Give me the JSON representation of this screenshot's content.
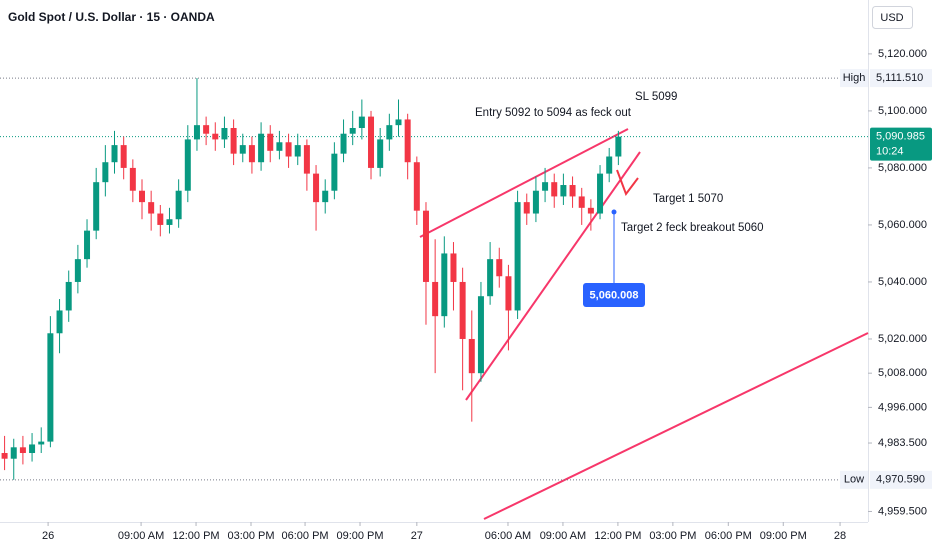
{
  "chart_data": {
    "type": "candlestick",
    "title": "Gold Spot / U.S. Dollar · 15 · OANDA",
    "currency": "USD",
    "x": [
      1,
      3,
      5,
      7,
      9,
      11,
      13,
      15,
      17,
      19,
      21,
      23,
      25,
      27,
      29,
      31,
      33,
      35,
      37,
      39,
      41,
      43,
      45,
      47,
      49,
      51,
      53,
      55,
      57,
      59,
      61,
      63,
      65,
      67,
      69,
      71,
      73,
      75,
      77,
      79,
      81,
      83,
      85,
      87,
      89,
      91,
      93,
      95,
      97,
      99,
      101,
      103,
      105,
      107,
      109,
      111,
      113,
      115,
      117,
      119,
      121,
      123,
      125,
      127,
      129,
      131,
      133,
      135
    ],
    "open": [
      4980,
      4978,
      4982,
      4980,
      4983,
      4984,
      5022,
      5030,
      5040,
      5048,
      5058,
      5075,
      5082,
      5088,
      5080,
      5072,
      5068,
      5064,
      5060,
      5062,
      5072,
      5090,
      5095,
      5092,
      5090,
      5094,
      5085,
      5088,
      5082,
      5092,
      5086,
      5089,
      5084,
      5088,
      5078,
      5068,
      5072,
      5085,
      5092,
      5094,
      5098,
      5080,
      5090,
      5095,
      5097,
      5082,
      5065,
      5040,
      5028,
      5050,
      5040,
      5020,
      5008,
      5035,
      5048,
      5042,
      5030,
      5068,
      5064,
      5072,
      5075,
      5070,
      5074,
      5070,
      5066,
      5064,
      5078,
      5084
    ],
    "high": [
      4986,
      4985,
      4986,
      4987,
      4989,
      5028,
      5034,
      5044,
      5053,
      5062,
      5080,
      5088,
      5093,
      5091,
      5083,
      5076,
      5072,
      5067,
      5066,
      5076,
      5095,
      5111.51,
      5098,
      5096,
      5098,
      5097,
      5092,
      5091,
      5096,
      5095,
      5093,
      5092,
      5092,
      5090,
      5081,
      5076,
      5089,
      5097,
      5100,
      5104,
      5100,
      5094,
      5099,
      5104,
      5099,
      5084,
      5068,
      5055,
      5056,
      5054,
      5045,
      5030,
      5040,
      5054,
      5052,
      5046,
      5072,
      5071,
      5077,
      5080,
      5078,
      5078,
      5077,
      5073,
      5069,
      5081,
      5087,
      5093
    ],
    "low": [
      4974,
      4970.59,
      4976,
      4977,
      4980,
      4982,
      5015,
      5026,
      5036,
      5045,
      5055,
      5070,
      5078,
      5076,
      5068,
      5062,
      5058,
      5056,
      5057,
      5059,
      5068,
      5086,
      5088,
      5086,
      5087,
      5081,
      5082,
      5078,
      5079,
      5082,
      5083,
      5080,
      5081,
      5072,
      5058,
      5064,
      5069,
      5082,
      5088,
      5090,
      5076,
      5077,
      5086,
      5091,
      5076,
      5060,
      5025,
      5008,
      5024,
      5030,
      5002,
      4991,
      5005,
      5032,
      5038,
      5016,
      5027,
      5060,
      5061,
      5068,
      5066,
      5067,
      5066,
      5060,
      5058,
      5062,
      5075,
      5081
    ],
    "close": [
      4978,
      4982,
      4980,
      4983,
      4984,
      5022,
      5030,
      5040,
      5048,
      5058,
      5075,
      5082,
      5088,
      5080,
      5072,
      5068,
      5064,
      5060,
      5062,
      5072,
      5090,
      5095,
      5092,
      5090,
      5094,
      5085,
      5088,
      5082,
      5092,
      5086,
      5089,
      5084,
      5088,
      5078,
      5068,
      5072,
      5085,
      5092,
      5094,
      5098,
      5080,
      5090,
      5095,
      5097,
      5082,
      5065,
      5040,
      5028,
      5050,
      5040,
      5020,
      5008,
      5035,
      5048,
      5042,
      5030,
      5068,
      5064,
      5072,
      5075,
      5070,
      5074,
      5070,
      5066,
      5064,
      5078,
      5084,
      5090.985
    ],
    "up_color": "#089981",
    "down_color": "#f23645",
    "xlim": [
      0,
      189.5
    ],
    "ylim": [
      4955.8,
      5138.9
    ],
    "grid": false,
    "xticks": [
      {
        "value": 10.5,
        "label": "26"
      },
      {
        "value": 30.8,
        "label": "09:00 AM"
      },
      {
        "value": 42.8,
        "label": "12:00 PM"
      },
      {
        "value": 54.8,
        "label": "03:00 PM"
      },
      {
        "value": 66.6,
        "label": "06:00 PM"
      },
      {
        "value": 78.6,
        "label": "09:00 PM"
      },
      {
        "value": 91,
        "label": "27"
      },
      {
        "value": 110.9,
        "label": "06:00 AM"
      },
      {
        "value": 122.9,
        "label": "09:00 AM"
      },
      {
        "value": 134.9,
        "label": "12:00 PM"
      },
      {
        "value": 146.9,
        "label": "03:00 PM"
      },
      {
        "value": 159,
        "label": "06:00 PM"
      },
      {
        "value": 171,
        "label": "09:00 PM"
      },
      {
        "value": 183.4,
        "label": "28"
      }
    ],
    "yticks": [
      {
        "value": 5120,
        "label": "5,120.000"
      },
      {
        "value": 5100,
        "label": "5,100.000"
      },
      {
        "value": 5080,
        "label": "5,080.000"
      },
      {
        "value": 5060,
        "label": "5,060.000"
      },
      {
        "value": 5040,
        "label": "5,040.000"
      },
      {
        "value": 5020,
        "label": "5,020.000"
      },
      {
        "value": 5008,
        "label": "5,008.000"
      },
      {
        "value": 4996,
        "label": "4,996.000"
      },
      {
        "value": 4983.5,
        "label": "4,983.500"
      },
      {
        "value": 4959.5,
        "label": "4,959.500"
      }
    ],
    "high_marker": {
      "name": "High",
      "value": 5111.51,
      "label": "5,111.510"
    },
    "low_marker": {
      "name": "Low",
      "value": 4970.59,
      "label": "4,970.590"
    },
    "last_price": {
      "value": 5090.985,
      "label": "5,090.985",
      "countdown": "10:24",
      "color": "#089981"
    },
    "price_tag": {
      "value": 5060.008,
      "label": "5,060.008",
      "color": "#2962ff"
    },
    "annotations": [
      "Entry 5092 to 5094 as feck out",
      "SL 5099",
      "Target 1 5070",
      "Target 2 feck breakout 5060"
    ]
  }
}
